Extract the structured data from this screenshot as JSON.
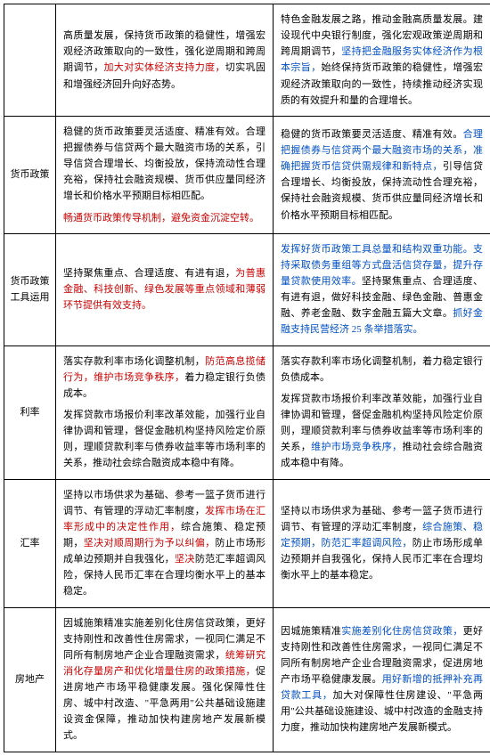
{
  "colors": {
    "black": "#000000",
    "red": "#cc0000",
    "blue": "#004fc5"
  },
  "rows": [
    {
      "label": "",
      "left": [
        [
          {
            "c": "black",
            "t": "高质量发展，保持货币政策的稳健性，增强宏观经济政策取向的一致性，强化逆周期和跨周期调节，"
          },
          {
            "c": "red",
            "t": "加大对实体经济支持力度，"
          },
          {
            "c": "black",
            "t": "切实巩固和增强经济回升向好态势。"
          }
        ]
      ],
      "right": [
        [
          {
            "c": "black",
            "t": "特色金融发展之路，推动金融高质量发展。建设现代中央银行制度，强化宏观政策逆周期和跨周期调节，"
          },
          {
            "c": "blue",
            "t": "坚持把金融服务实体经济作为根本宗旨，"
          },
          {
            "c": "black",
            "t": "始终保持货币政策的稳健性，增强宏观经济政策取向的一致性，持续推动经济实现质的有效提升和量的合理增长。"
          }
        ]
      ]
    },
    {
      "label": "货币政策",
      "left": [
        [
          {
            "c": "black",
            "t": "稳健的货币政策要灵活适度、精准有效。合理把握债券与信贷两个最大融资市场的关系，引导信贷合理增长、均衡投放，保持流动性合理充裕，保持社会融资规模、货币供应量同经济增长和价格水平预期目标相匹配。"
          }
        ],
        [
          {
            "c": "red",
            "t": "畅通货币政策传导机制，避免资金沉淀空转。"
          }
        ]
      ],
      "right": [
        [
          {
            "c": "black",
            "t": "稳健的货币政策要灵活适度、精准有效。"
          },
          {
            "c": "blue",
            "t": "合理把握债券与信贷两个最大融资市场的关系，准确把握货币信贷供需规律和新特点，"
          },
          {
            "c": "black",
            "t": "引导信贷合理增长、均衡投放，保持流动性合理充裕，保持社会融资规模、货币供应量同经济增长和价格水平预期目标相匹配。"
          }
        ]
      ]
    },
    {
      "label": "货币政策工具运用",
      "left": [
        [
          {
            "c": "black",
            "t": "坚持聚焦重点、合理适度、有进有退，"
          },
          {
            "c": "red",
            "t": "为普惠金融、科技创新、绿色发展等重点领域和薄弱环节提供有效支持。"
          }
        ]
      ],
      "right": [
        [
          {
            "c": "blue",
            "t": "发挥好货币政策工具总量和结构双重功能。支持采取债务重组等方式盘活信贷存量，提升存量贷款使用效率。"
          },
          {
            "c": "black",
            "t": "坚持聚焦重点、合理适度、有进有退，做好科技金融、绿色金融、普惠金融、养老金融、数字金融五篇大文章。"
          },
          {
            "c": "blue",
            "t": "抓好金融支持民营经济 25 条举措落实。"
          }
        ]
      ]
    },
    {
      "label": "利率",
      "left": [
        [
          {
            "c": "black",
            "t": "落实存款利率市场化调整机制，"
          },
          {
            "c": "red",
            "t": "防范高息揽储行为，维护市场竞争秩序，"
          },
          {
            "c": "black",
            "t": "着力稳定银行负债成本。"
          }
        ],
        [
          {
            "c": "black",
            "t": "发挥贷款市场报价利率改革效能，加强行业自律协调和管理，督促金融机构坚持风险定价原则，理顺贷款利率与债券收益率等市场利率的关系，推动社会综合融资成本稳中有降。"
          }
        ]
      ],
      "right": [
        [
          {
            "c": "black",
            "t": "落实存款利率市场化调整机制，着力稳定银行负债成本。"
          }
        ],
        [
          {
            "c": "black",
            "t": "发挥贷款市场报价利率改革效能，加强行业自律协调和管理，督促金融机构坚持风险定价原则，理顺贷款利率与债券收益率等市场利率的关系，"
          },
          {
            "c": "blue",
            "t": "维护市场竞争秩序，"
          },
          {
            "c": "black",
            "t": "推动社会综合融资成本稳中有降。"
          }
        ]
      ]
    },
    {
      "label": "汇率",
      "left": [
        [
          {
            "c": "black",
            "t": "坚持以市场供求为基础、参考一篮子货币进行调节、有管理的浮动汇率制度，"
          },
          {
            "c": "red",
            "t": "发挥市场在汇率形成中的决定性作用，"
          },
          {
            "c": "black",
            "t": "综合施策、稳定预期，"
          },
          {
            "c": "red",
            "t": "坚决对顺周期行为予以纠偏，"
          },
          {
            "c": "black",
            "t": "防止市场形成单边预期并自我强化，"
          },
          {
            "c": "red",
            "t": "坚决"
          },
          {
            "c": "black",
            "t": "防范汇率超调风险，保持人民币汇率在合理均衡水平上的基本稳定。"
          }
        ]
      ],
      "right": [
        [
          {
            "c": "black",
            "t": "坚持以市场供求为基础、参考一篮子货币进行调节、有管理的浮动汇率制度，"
          },
          {
            "c": "blue",
            "t": "综合施策、稳定预期，防范汇率超调风险，"
          },
          {
            "c": "black",
            "t": "防止市场形成单边预期并自我强化，保持人民币汇率在合理均衡水平上的基本稳定。"
          }
        ]
      ]
    },
    {
      "label": "房地产",
      "left": [
        [
          {
            "c": "black",
            "t": "因城施策精准实施差别化住房信贷政策，更好支持刚性和改善性住房需求，一视同仁满足不同所有制房地产企业合理融资需求，"
          },
          {
            "c": "red",
            "t": "统筹研究消化存量房产和优化增量住房的政策措施，"
          },
          {
            "c": "black",
            "t": "促进房地产市场平稳健康发展。强化保障性住房、城中村改造、\"平急两用\"公共基础设施建设资金保障，推动加快构建房地产发展新模式。"
          }
        ]
      ],
      "right": [
        [
          {
            "c": "black",
            "t": "因城施策精准"
          },
          {
            "c": "blue",
            "t": "实施差别化住房信贷政策，"
          },
          {
            "c": "black",
            "t": "更好支持刚性和改善性住房需求，一视同仁满足不同所有制房地产企业合理融资需求，促进房地产市场平稳健康发展。"
          },
          {
            "c": "blue",
            "t": "用好新增的抵押补充再贷款工具，"
          },
          {
            "c": "black",
            "t": "加大对保障性住房建设、\"平急两用\"公共基础设施建设、城中村改造的金融支持力度，推动加快构建房地产发展新模式。"
          }
        ]
      ]
    }
  ]
}
